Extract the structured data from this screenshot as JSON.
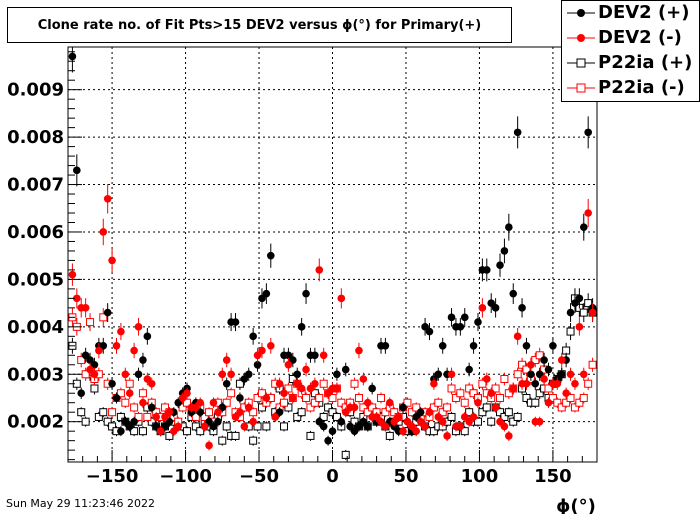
{
  "title": "Clone rate no. of Fit Pts>15 DEV2 versus ϕ(°) for Primary(+)",
  "date_stamp": "Sun May 29 11:23:46 2022",
  "chart_data": {
    "type": "scatter",
    "title": "Clone rate no. of Fit Pts>15 DEV2 versus ϕ(°) for Primary(+)",
    "xlabel": "ϕ(°)",
    "ylabel": "",
    "xlim": [
      -180,
      180
    ],
    "ylim": [
      0.00115,
      0.0099
    ],
    "x_ticks": [
      -150,
      -100,
      -50,
      0,
      50,
      100,
      150
    ],
    "x_tick_labels": [
      "−150",
      "−100",
      "−50",
      "0",
      "50",
      "100",
      "150"
    ],
    "y_ticks": [
      0.002,
      0.003,
      0.004,
      0.005,
      0.006,
      0.007,
      0.008,
      0.009
    ],
    "y_tick_labels": [
      "0.002",
      "0.003",
      "0.004",
      "0.005",
      "0.006",
      "0.007",
      "0.008",
      "0.009"
    ],
    "grid": true,
    "legend_position": "top-right",
    "series": [
      {
        "name": "DEV2 (+)",
        "color": "#000000",
        "marker": "filled-circle",
        "x": [
          -177,
          -174,
          -171,
          -168,
          -165,
          -162,
          -159,
          -156,
          -153,
          -150,
          -147,
          -144,
          -141,
          -138,
          -135,
          -132,
          -129,
          -126,
          -123,
          -120,
          -117,
          -114,
          -111,
          -108,
          -105,
          -102,
          -99,
          -96,
          -93,
          -90,
          -87,
          -84,
          -81,
          -78,
          -75,
          -72,
          -69,
          -66,
          -63,
          -60,
          -57,
          -54,
          -51,
          -48,
          -45,
          -42,
          -39,
          -36,
          -33,
          -30,
          -27,
          -24,
          -21,
          -18,
          -15,
          -12,
          -9,
          -6,
          -3,
          0,
          3,
          6,
          9,
          12,
          15,
          18,
          21,
          24,
          27,
          30,
          33,
          36,
          39,
          42,
          45,
          48,
          51,
          54,
          57,
          60,
          63,
          66,
          69,
          72,
          75,
          78,
          81,
          84,
          87,
          90,
          93,
          96,
          99,
          102,
          105,
          108,
          111,
          114,
          117,
          120,
          123,
          126,
          129,
          132,
          135,
          138,
          141,
          144,
          147,
          150,
          153,
          156,
          159,
          162,
          165,
          168,
          171,
          174,
          177
        ],
        "y": [
          0.0097,
          0.0073,
          0.0026,
          0.0034,
          0.0033,
          0.0032,
          0.0036,
          0.0036,
          0.0043,
          0.0028,
          0.0025,
          0.0018,
          0.002,
          0.0019,
          0.002,
          0.003,
          0.0033,
          0.0038,
          0.0023,
          0.0019,
          0.0018,
          0.0019,
          0.002,
          0.0022,
          0.0024,
          0.0026,
          0.0027,
          0.0022,
          0.0024,
          0.0022,
          0.0019,
          0.002,
          0.0019,
          0.002,
          0.0023,
          0.0028,
          0.0041,
          0.0041,
          0.0025,
          0.0029,
          0.003,
          0.0038,
          0.0032,
          0.0046,
          0.0047,
          0.0055,
          0.0021,
          0.0022,
          0.0034,
          0.0034,
          0.0033,
          0.003,
          0.004,
          0.0047,
          0.0034,
          0.0034,
          0.002,
          0.0019,
          0.0016,
          0.0018,
          0.003,
          0.002,
          0.0031,
          0.0019,
          0.0018,
          0.0019,
          0.002,
          0.0019,
          0.0027,
          0.002,
          0.0036,
          0.0036,
          0.002,
          0.0019,
          0.0018,
          0.0023,
          0.002,
          0.0018,
          0.0021,
          0.0022,
          0.004,
          0.0039,
          0.0029,
          0.003,
          0.0036,
          0.003,
          0.0042,
          0.004,
          0.004,
          0.0042,
          0.0031,
          0.0036,
          0.0041,
          0.0052,
          0.0052,
          0.0045,
          0.0044,
          0.0053,
          0.0056,
          0.0061,
          0.0047,
          0.0081,
          0.0044,
          0.0036,
          0.003,
          0.0028,
          0.003,
          0.0033,
          0.0031,
          0.0036,
          0.0029,
          0.003,
          0.0033,
          0.0043,
          0.0045,
          0.0046,
          0.0061,
          0.0081,
          0.0044
        ]
      },
      {
        "name": "DEV2 (-)",
        "color": "#ff0000",
        "marker": "filled-circle",
        "x": [
          -177,
          -174,
          -171,
          -168,
          -165,
          -162,
          -159,
          -156,
          -153,
          -150,
          -147,
          -144,
          -141,
          -138,
          -135,
          -132,
          -129,
          -126,
          -123,
          -120,
          -117,
          -114,
          -111,
          -108,
          -105,
          -102,
          -99,
          -96,
          -93,
          -90,
          -87,
          -84,
          -81,
          -78,
          -75,
          -72,
          -69,
          -66,
          -63,
          -60,
          -57,
          -54,
          -51,
          -48,
          -45,
          -42,
          -39,
          -36,
          -33,
          -30,
          -27,
          -24,
          -21,
          -18,
          -15,
          -12,
          -9,
          -6,
          -3,
          0,
          3,
          6,
          9,
          12,
          15,
          18,
          21,
          24,
          27,
          30,
          33,
          36,
          39,
          42,
          45,
          48,
          51,
          54,
          57,
          60,
          63,
          66,
          69,
          72,
          75,
          78,
          81,
          84,
          87,
          90,
          93,
          96,
          99,
          102,
          105,
          108,
          111,
          114,
          117,
          120,
          123,
          126,
          129,
          132,
          135,
          138,
          141,
          144,
          147,
          150,
          153,
          156,
          159,
          162,
          165,
          168,
          171,
          174,
          177
        ],
        "y": [
          0.0051,
          0.0046,
          0.0044,
          0.0044,
          0.0031,
          0.003,
          0.0035,
          0.006,
          0.0067,
          0.0054,
          0.0036,
          0.0039,
          0.003,
          0.0026,
          0.0035,
          0.004,
          0.0024,
          0.0029,
          0.0028,
          0.0021,
          0.0018,
          0.0021,
          0.0022,
          0.0018,
          0.0019,
          0.0025,
          0.0026,
          0.0023,
          0.0023,
          0.0024,
          0.0019,
          0.0015,
          0.0024,
          0.0022,
          0.003,
          0.0033,
          0.003,
          0.0021,
          0.0022,
          0.0019,
          0.0023,
          0.002,
          0.0034,
          0.0035,
          0.0025,
          0.0036,
          0.0021,
          0.0028,
          0.0026,
          0.0032,
          0.0025,
          0.0028,
          0.0027,
          0.0031,
          0.0027,
          0.0028,
          0.0052,
          0.0034,
          0.0026,
          0.0027,
          0.0027,
          0.0046,
          0.0022,
          0.0023,
          0.0023,
          0.0035,
          0.0029,
          0.0024,
          0.0021,
          0.0021,
          0.002,
          0.0019,
          0.0024,
          0.002,
          0.0021,
          0.0018,
          0.002,
          0.0019,
          0.0018,
          0.002,
          0.0019,
          0.0022,
          0.0028,
          0.0021,
          0.002,
          0.0017,
          0.003,
          0.0019,
          0.0019,
          0.0021,
          0.002,
          0.0021,
          0.0024,
          0.0044,
          0.0029,
          0.0026,
          0.0023,
          0.002,
          0.0019,
          0.0017,
          0.0027,
          0.0038,
          0.0028,
          0.0028,
          0.0032,
          0.002,
          0.002,
          0.0029,
          0.0024,
          0.0028,
          0.0028,
          0.0033,
          0.0026,
          0.003,
          0.0028,
          0.004,
          0.003,
          0.0064,
          0.0043
        ]
      },
      {
        "name": "P22ia (+)",
        "color": "#000000",
        "marker": "open-square",
        "x": [
          -177,
          -174,
          -171,
          -168,
          -165,
          -162,
          -159,
          -156,
          -153,
          -150,
          -147,
          -144,
          -141,
          -138,
          -135,
          -132,
          -129,
          -126,
          -123,
          -120,
          -117,
          -114,
          -111,
          -108,
          -105,
          -102,
          -99,
          -96,
          -93,
          -90,
          -87,
          -84,
          -81,
          -78,
          -75,
          -72,
          -69,
          -66,
          -63,
          -60,
          -57,
          -54,
          -51,
          -48,
          -45,
          -42,
          -39,
          -36,
          -33,
          -30,
          -27,
          -24,
          -21,
          -18,
          -15,
          -12,
          -9,
          -6,
          -3,
          0,
          3,
          6,
          9,
          12,
          15,
          18,
          21,
          24,
          27,
          30,
          33,
          36,
          39,
          42,
          45,
          48,
          51,
          54,
          57,
          60,
          63,
          66,
          69,
          72,
          75,
          78,
          81,
          84,
          87,
          90,
          93,
          96,
          99,
          102,
          105,
          108,
          111,
          114,
          117,
          120,
          123,
          126,
          129,
          132,
          135,
          138,
          141,
          144,
          147,
          150,
          153,
          156,
          159,
          162,
          165,
          168,
          171,
          174,
          177
        ],
        "y": [
          0.0036,
          0.0028,
          0.0022,
          0.002,
          0.003,
          0.0027,
          0.0021,
          0.0022,
          0.002,
          0.0019,
          0.0018,
          0.0021,
          0.002,
          0.0019,
          0.0018,
          0.002,
          0.0018,
          0.0023,
          0.002,
          0.0019,
          0.0018,
          0.0019,
          0.0017,
          0.002,
          0.0019,
          0.0019,
          0.0018,
          0.0021,
          0.0019,
          0.0018,
          0.002,
          0.0019,
          0.0018,
          0.0021,
          0.0016,
          0.0019,
          0.0017,
          0.0017,
          0.0028,
          0.0023,
          0.0019,
          0.0016,
          0.0019,
          0.0023,
          0.0019,
          0.0025,
          0.0022,
          0.0027,
          0.0019,
          0.0023,
          0.0029,
          0.0021,
          0.0022,
          0.0025,
          0.0017,
          0.0026,
          0.0024,
          0.0021,
          0.0023,
          0.0022,
          0.0021,
          0.0019,
          0.0013,
          0.0022,
          0.002,
          0.0019,
          0.0021,
          0.0019,
          0.0022,
          0.002,
          0.0021,
          0.0019,
          0.0017,
          0.002,
          0.002,
          0.0021,
          0.0018,
          0.0018,
          0.002,
          0.0021,
          0.0019,
          0.0018,
          0.0018,
          0.0019,
          0.0019,
          0.002,
          0.0021,
          0.0018,
          0.0019,
          0.0018,
          0.0022,
          0.002,
          0.002,
          0.0022,
          0.0023,
          0.002,
          0.0023,
          0.0022,
          0.0021,
          0.0022,
          0.002,
          0.0021,
          0.0027,
          0.0025,
          0.0024,
          0.0024,
          0.0026,
          0.0027,
          0.0025,
          0.0028,
          0.0029,
          0.003,
          0.0035,
          0.0039,
          0.0046,
          0.0044,
          0.0043,
          0.0045,
          0.0043
        ]
      },
      {
        "name": "P22ia (-)",
        "color": "#ff0000",
        "marker": "open-square",
        "x": [
          -177,
          -174,
          -171,
          -168,
          -165,
          -162,
          -159,
          -156,
          -153,
          -150,
          -147,
          -144,
          -141,
          -138,
          -135,
          -132,
          -129,
          -126,
          -123,
          -120,
          -117,
          -114,
          -111,
          -108,
          -105,
          -102,
          -99,
          -96,
          -93,
          -90,
          -87,
          -84,
          -81,
          -78,
          -75,
          -72,
          -69,
          -66,
          -63,
          -60,
          -57,
          -54,
          -51,
          -48,
          -45,
          -42,
          -39,
          -36,
          -33,
          -30,
          -27,
          -24,
          -21,
          -18,
          -15,
          -12,
          -9,
          -6,
          -3,
          0,
          3,
          6,
          9,
          12,
          15,
          18,
          21,
          24,
          27,
          30,
          33,
          36,
          39,
          42,
          45,
          48,
          51,
          54,
          57,
          60,
          63,
          66,
          69,
          72,
          75,
          78,
          81,
          84,
          87,
          90,
          93,
          96,
          99,
          102,
          105,
          108,
          111,
          114,
          117,
          120,
          123,
          126,
          129,
          132,
          135,
          138,
          141,
          144,
          147,
          150,
          153,
          156,
          159,
          162,
          165,
          168,
          171,
          174,
          177
        ],
        "y": [
          0.0042,
          0.004,
          0.0033,
          0.003,
          0.0041,
          0.0029,
          0.003,
          0.0042,
          0.0028,
          0.0022,
          0.0025,
          0.0026,
          0.0024,
          0.0028,
          0.0023,
          0.0021,
          0.0026,
          0.0021,
          0.0024,
          0.0022,
          0.0021,
          0.0023,
          0.0022,
          0.0021,
          0.002,
          0.0023,
          0.0024,
          0.0022,
          0.0021,
          0.0023,
          0.0021,
          0.0022,
          0.002,
          0.0024,
          0.0022,
          0.0024,
          0.0026,
          0.0022,
          0.0021,
          0.0023,
          0.0024,
          0.0022,
          0.0025,
          0.0026,
          0.0024,
          0.0025,
          0.0028,
          0.0023,
          0.0024,
          0.0027,
          0.0025,
          0.0028,
          0.0026,
          0.0025,
          0.0023,
          0.0024,
          0.0025,
          0.0028,
          0.0026,
          0.0025,
          0.0027,
          0.0024,
          0.0023,
          0.0024,
          0.0028,
          0.0025,
          0.0023,
          0.0022,
          0.0023,
          0.0022,
          0.0025,
          0.0022,
          0.0023,
          0.0022,
          0.0021,
          0.0023,
          0.0024,
          0.0022,
          0.0023,
          0.0021,
          0.0022,
          0.0021,
          0.0023,
          0.0024,
          0.0022,
          0.0023,
          0.0027,
          0.0025,
          0.0026,
          0.0024,
          0.0027,
          0.0026,
          0.0025,
          0.0028,
          0.0026,
          0.0025,
          0.0027,
          0.0025,
          0.0029,
          0.0026,
          0.0027,
          0.003,
          0.0032,
          0.0031,
          0.0029,
          0.0033,
          0.0034,
          0.0031,
          0.0027,
          0.0025,
          0.0024,
          0.0023,
          0.0024,
          0.0025,
          0.0023,
          0.0024,
          0.0025,
          0.0028,
          0.0032
        ]
      }
    ]
  }
}
